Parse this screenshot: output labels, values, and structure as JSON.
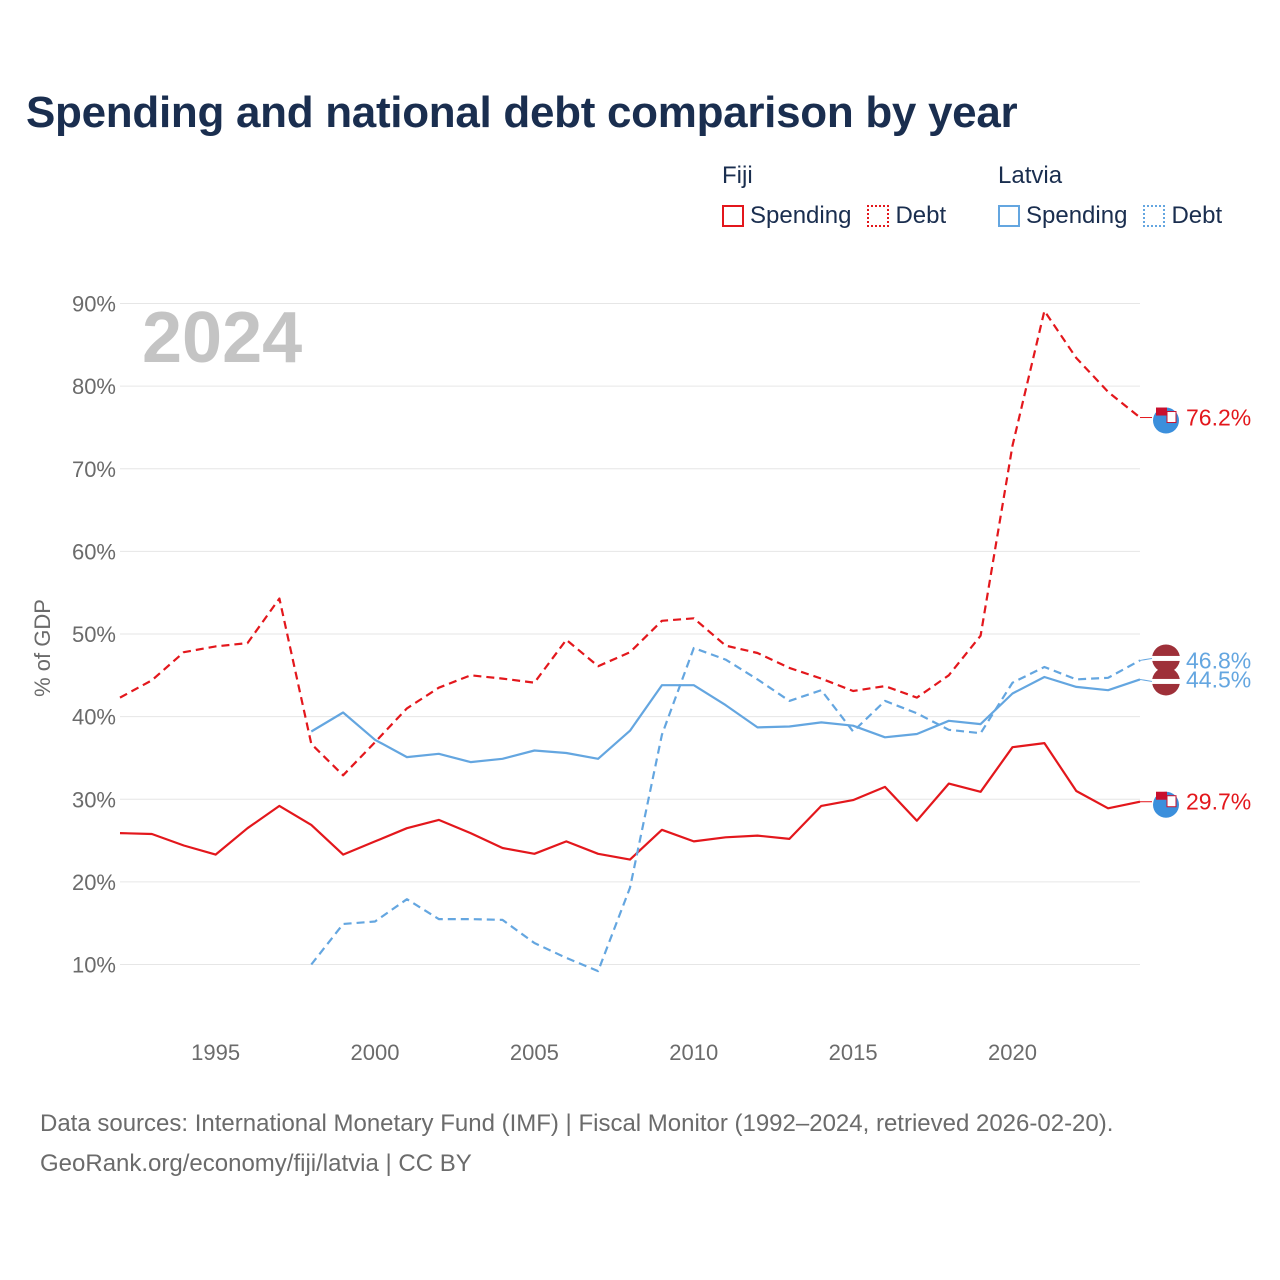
{
  "title": "Spending and national debt comparison by year",
  "legend": {
    "groups": [
      {
        "name": "Fiji",
        "color": "#e3171c",
        "items": [
          {
            "label": "Spending",
            "style": "solid"
          },
          {
            "label": "Debt",
            "style": "dotted"
          }
        ]
      },
      {
        "name": "Latvia",
        "color": "#64a6e0",
        "items": [
          {
            "label": "Spending",
            "style": "solid"
          },
          {
            "label": "Debt",
            "style": "dotted"
          }
        ]
      }
    ]
  },
  "chart_data": {
    "type": "line",
    "year_label": "2024",
    "ylabel": "% of GDP",
    "xlabel": "",
    "xlim": [
      1992,
      2024
    ],
    "ylim": [
      0,
      90
    ],
    "x_ticks": [
      1995,
      2000,
      2005,
      2010,
      2015,
      2020
    ],
    "y_ticks": [
      10,
      20,
      30,
      40,
      50,
      60,
      70,
      80,
      90
    ],
    "y_tick_labels": [
      "10%",
      "20%",
      "30%",
      "40%",
      "50%",
      "60%",
      "70%",
      "80%",
      "90%"
    ],
    "series": [
      {
        "name": "Fiji Spending",
        "country": "Fiji",
        "metric": "Spending",
        "color": "#e3171c",
        "dash": "solid",
        "x": [
          1992,
          1993,
          1994,
          1995,
          1996,
          1997,
          1998,
          1999,
          2000,
          2001,
          2002,
          2003,
          2004,
          2005,
          2006,
          2007,
          2008,
          2009,
          2010,
          2011,
          2012,
          2013,
          2014,
          2015,
          2016,
          2017,
          2018,
          2019,
          2020,
          2021,
          2022,
          2023,
          2024
        ],
        "values": [
          25.9,
          25.8,
          24.4,
          23.3,
          26.5,
          29.2,
          26.9,
          23.3,
          24.9,
          26.5,
          27.5,
          25.9,
          24.1,
          23.4,
          24.9,
          23.4,
          22.7,
          26.3,
          24.9,
          25.4,
          25.6,
          25.2,
          29.2,
          29.9,
          31.5,
          27.4,
          31.9,
          30.9,
          36.3,
          36.8,
          31.0,
          28.9,
          29.7
        ],
        "end_label": "29.7%"
      },
      {
        "name": "Fiji Debt",
        "country": "Fiji",
        "metric": "Debt",
        "color": "#e3171c",
        "dash": "dashed",
        "x": [
          1992,
          1993,
          1994,
          1995,
          1996,
          1997,
          1998,
          1999,
          2000,
          2001,
          2002,
          2003,
          2004,
          2005,
          2006,
          2007,
          2008,
          2009,
          2010,
          2011,
          2012,
          2013,
          2014,
          2015,
          2016,
          2017,
          2018,
          2019,
          2020,
          2021,
          2022,
          2023,
          2024
        ],
        "values": [
          42.3,
          44.4,
          47.8,
          48.5,
          48.9,
          54.3,
          36.7,
          32.9,
          36.9,
          41.0,
          43.5,
          45.0,
          44.6,
          44.1,
          49.3,
          46.1,
          47.8,
          51.6,
          51.9,
          48.6,
          47.7,
          45.9,
          44.6,
          43.1,
          43.7,
          42.3,
          45.0,
          49.8,
          72.8,
          89.1,
          83.4,
          79.3,
          76.2
        ],
        "end_label": "76.2%"
      },
      {
        "name": "Latvia Spending",
        "country": "Latvia",
        "metric": "Spending",
        "color": "#64a6e0",
        "dash": "solid",
        "x": [
          1998,
          1999,
          2000,
          2001,
          2002,
          2003,
          2004,
          2005,
          2006,
          2007,
          2008,
          2009,
          2010,
          2011,
          2012,
          2013,
          2014,
          2015,
          2016,
          2017,
          2018,
          2019,
          2020,
          2021,
          2022,
          2023,
          2024
        ],
        "values": [
          38.2,
          40.5,
          37.2,
          35.1,
          35.5,
          34.5,
          34.9,
          35.9,
          35.6,
          34.9,
          38.3,
          43.8,
          43.8,
          41.4,
          38.7,
          38.8,
          39.3,
          38.9,
          37.5,
          37.9,
          39.5,
          39.1,
          42.8,
          44.8,
          43.6,
          43.2,
          44.5
        ],
        "end_label": "44.5%"
      },
      {
        "name": "Latvia Debt",
        "country": "Latvia",
        "metric": "Debt",
        "color": "#64a6e0",
        "dash": "dashed",
        "x": [
          1998,
          1999,
          2000,
          2001,
          2002,
          2003,
          2004,
          2005,
          2006,
          2007,
          2008,
          2009,
          2010,
          2011,
          2012,
          2013,
          2014,
          2015,
          2016,
          2017,
          2018,
          2019,
          2020,
          2021,
          2022,
          2023,
          2024
        ],
        "values": [
          10.0,
          14.9,
          15.2,
          17.9,
          15.5,
          15.5,
          15.4,
          12.6,
          10.8,
          9.2,
          19.3,
          37.8,
          48.3,
          46.9,
          44.5,
          41.9,
          43.2,
          38.2,
          41.9,
          40.4,
          38.4,
          38.0,
          44.1,
          46.0,
          44.5,
          44.7,
          46.8
        ],
        "end_label": "46.8%"
      }
    ]
  },
  "footer": {
    "line1": "Data sources: International Monetary Fund (IMF) | Fiscal Monitor (1992–2024, retrieved 2026-02-20).",
    "line2": "GeoRank.org/economy/fiji/latvia | CC BY"
  }
}
